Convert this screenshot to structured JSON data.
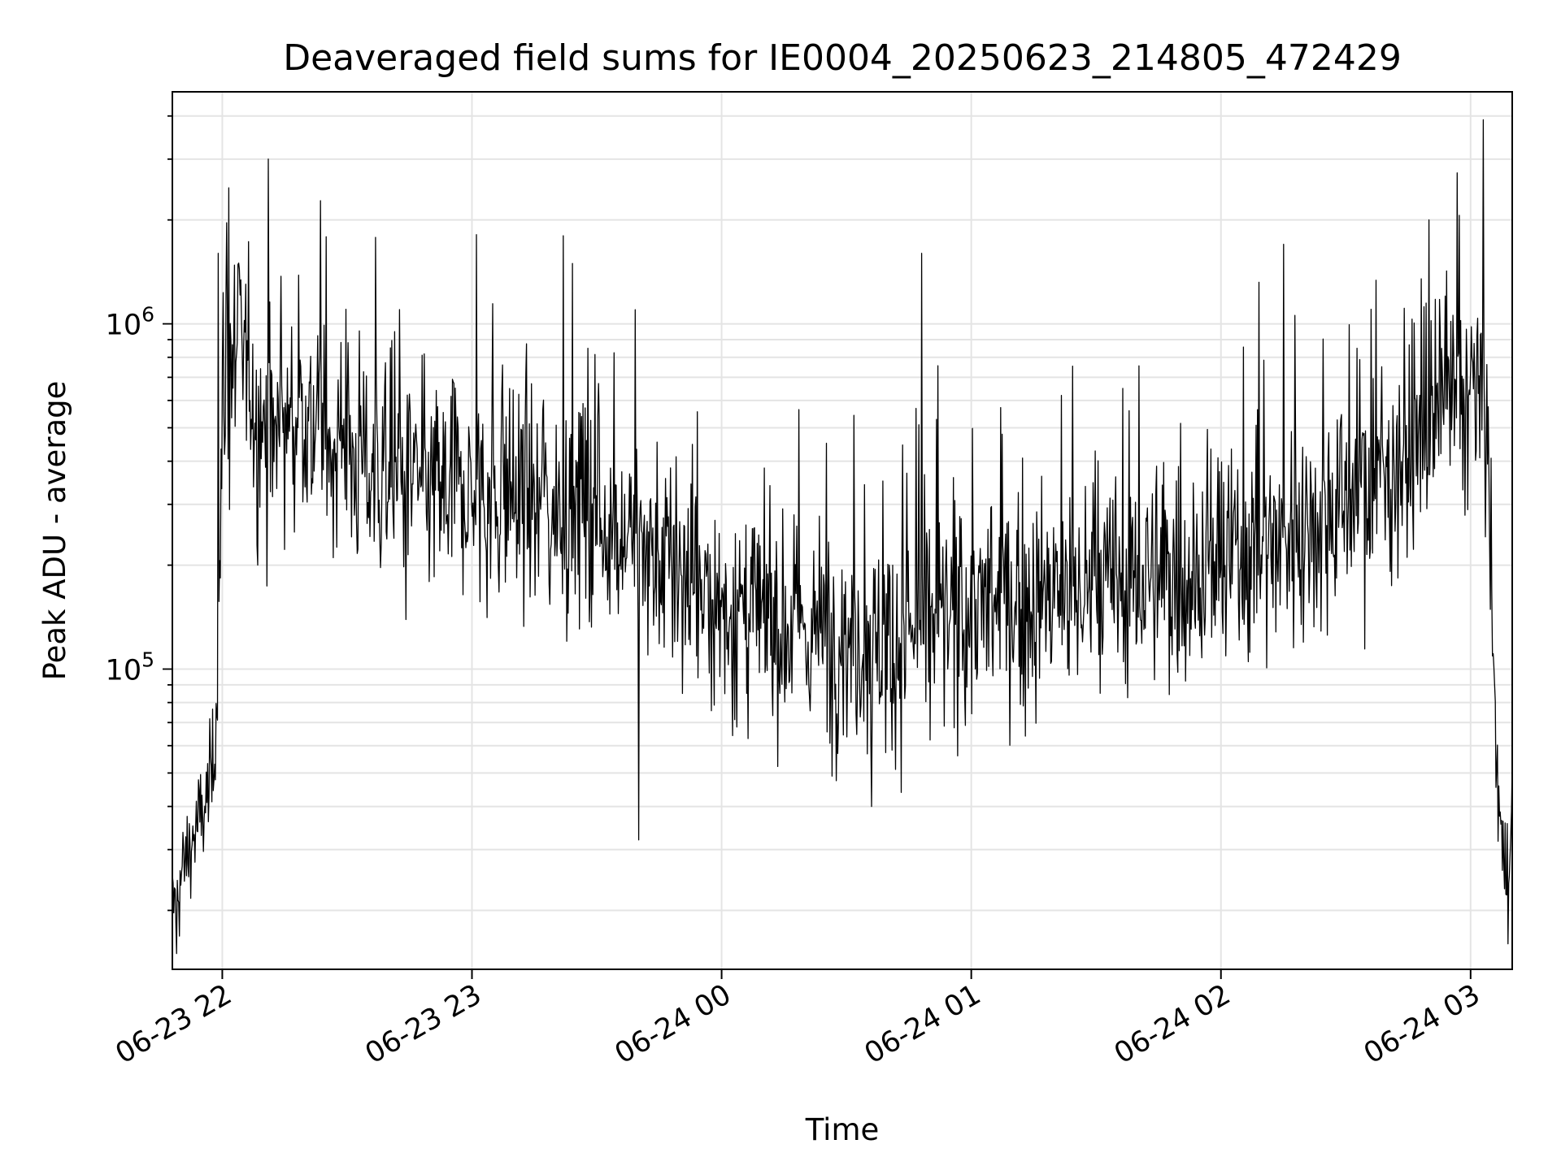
{
  "chart_data": {
    "type": "line",
    "title": "Deaveraged field sums for IE0004_20250623_214805_472429",
    "xlabel": "Time",
    "ylabel": "Peak ADU - average",
    "yscale": "log",
    "xlim": [
      "2025-06-23 21:48:00",
      "2025-06-24 03:10:00"
    ],
    "ylim": [
      13500,
      4700000
    ],
    "x_ticks": [
      "06-23 22",
      "06-23 23",
      "06-24 00",
      "06-24 01",
      "06-24 02",
      "06-24 03"
    ],
    "y_ticks": [
      {
        "value": 100000,
        "mantissa": "10",
        "exponent": "5"
      },
      {
        "value": 1000000,
        "mantissa": "10",
        "exponent": "6"
      }
    ],
    "grid": true,
    "legend": "none",
    "line_color": "#000000",
    "series": [
      {
        "time_start": "2025-06-23 21:48:00",
        "time_end": "2025-06-24 03:10:00",
        "envelope": [
          {
            "time": "2025-06-23 21:48",
            "y": 20000
          },
          {
            "time": "2025-06-23 21:52",
            "y": 30000
          },
          {
            "time": "2025-06-23 21:56",
            "y": 40000
          },
          {
            "time": "2025-06-23 21:58",
            "y": 55000
          },
          {
            "time": "2025-06-23 21:59",
            "y": 100000
          },
          {
            "time": "2025-06-23 22:00",
            "y": 600000
          },
          {
            "time": "2025-06-23 22:04",
            "y": 900000
          },
          {
            "time": "2025-06-23 22:10",
            "y": 450000
          },
          {
            "time": "2025-06-23 22:20",
            "y": 550000
          },
          {
            "time": "2025-06-23 22:40",
            "y": 350000
          },
          {
            "time": "2025-06-23 23:00",
            "y": 320000
          },
          {
            "time": "2025-06-23 23:20",
            "y": 300000
          },
          {
            "time": "2025-06-23 23:40",
            "y": 230000
          },
          {
            "time": "2025-06-24 00:00",
            "y": 150000
          },
          {
            "time": "2025-06-24 00:20",
            "y": 130000
          },
          {
            "time": "2025-06-24 00:40",
            "y": 120000
          },
          {
            "time": "2025-06-24 01:00",
            "y": 150000
          },
          {
            "time": "2025-06-24 01:20",
            "y": 160000
          },
          {
            "time": "2025-06-24 01:40",
            "y": 180000
          },
          {
            "time": "2025-06-24 02:00",
            "y": 200000
          },
          {
            "time": "2025-06-24 02:20",
            "y": 260000
          },
          {
            "time": "2025-06-24 02:40",
            "y": 380000
          },
          {
            "time": "2025-06-24 03:00",
            "y": 650000
          },
          {
            "time": "2025-06-24 03:04",
            "y": 500000
          },
          {
            "time": "2025-06-24 03:06",
            "y": 60000
          },
          {
            "time": "2025-06-24 03:08",
            "y": 25000
          },
          {
            "time": "2025-06-24 03:10",
            "y": 40000
          }
        ],
        "peaks": [
          {
            "time": "2025-06-23 22:11",
            "y": 3000000
          },
          {
            "time": "2025-06-24 03:03",
            "y": 3900000
          },
          {
            "time": "2025-06-24 02:50",
            "y": 2000000
          },
          {
            "time": "2025-06-23 23:22",
            "y": 1800000
          },
          {
            "time": "2025-06-23 21:59",
            "y": 1600000
          },
          {
            "time": "2025-06-23 22:04",
            "y": 1500000
          },
          {
            "time": "2025-06-24 00:48",
            "y": 1600000
          },
          {
            "time": "2025-06-24 02:15",
            "y": 1700000
          },
          {
            "time": "2025-06-23 23:40",
            "y": 32000
          },
          {
            "time": "2025-06-24 00:36",
            "y": 40000
          },
          {
            "time": "2025-06-23 21:49",
            "y": 15000
          },
          {
            "time": "2025-06-24 03:09",
            "y": 16000
          }
        ]
      }
    ]
  }
}
